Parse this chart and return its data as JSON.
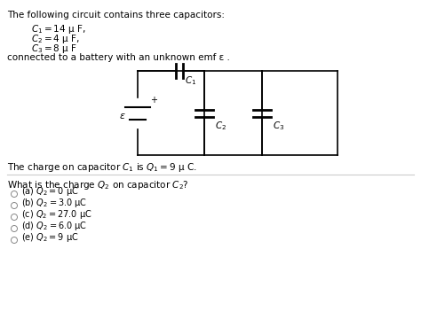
{
  "title_text": "The following circuit contains three capacitors:",
  "c1_text": "$C_1 = 14$ μ F,",
  "c2_text": "$C_2 = 4$ μ F,",
  "c3_text": "$C_3 = 8$ μ F",
  "connected_text": "connected to a battery with an unknown emf ε .",
  "charge_text": "The charge on capacitor $C_1$ is $Q_1 = 9$ μ C.",
  "question_text": "What is the charge $Q_2$ on capacitor $C_2$?",
  "options": [
    "(a) $Q_2 = 0$ μC",
    "(b) $Q_2 = 3.0$ μC",
    "(c) $Q_2 = 27.0$ μC",
    "(d) $Q_2 = 6.0$ μC",
    "(e) $Q_2 = 9$ μC"
  ],
  "bg_color": "#ffffff",
  "text_color": "#000000",
  "line_color": "#000000"
}
